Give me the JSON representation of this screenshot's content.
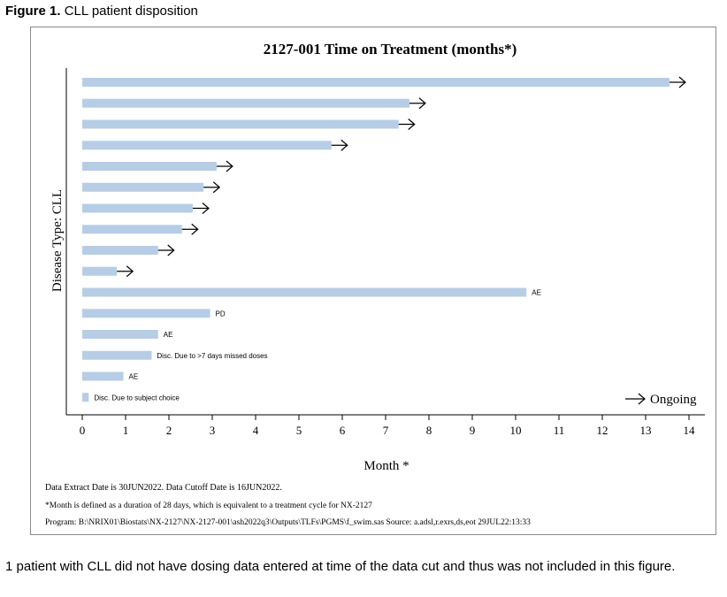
{
  "figure_label": "Figure 1.",
  "figure_title": "CLL patient disposition",
  "footnote": "1 patient with CLL did not have dosing data entered at time of the data cut and thus was not included in this figure.",
  "colors": {
    "bar": "#b7cde6",
    "frame": "#8a8a8a",
    "axis": "#000000"
  },
  "chart_data": {
    "type": "bar",
    "orientation": "horizontal",
    "title": "2127-001 Time on Treatment (months*)",
    "xlabel": "Month *",
    "ylabel": "Disease Type: CLL",
    "xlim": [
      0,
      14
    ],
    "xticks": [
      "0",
      "1",
      "2",
      "3",
      "4",
      "5",
      "6",
      "7",
      "8",
      "9",
      "10",
      "11",
      "12",
      "13",
      "14"
    ],
    "grid": false,
    "legend": {
      "label": "Ongoing",
      "symbol": "arrow",
      "placement": "bottom-right"
    },
    "bars": [
      {
        "value": 13.55,
        "ongoing": true,
        "label": ""
      },
      {
        "value": 7.55,
        "ongoing": true,
        "label": ""
      },
      {
        "value": 7.3,
        "ongoing": true,
        "label": ""
      },
      {
        "value": 5.75,
        "ongoing": true,
        "label": ""
      },
      {
        "value": 3.1,
        "ongoing": true,
        "label": ""
      },
      {
        "value": 2.8,
        "ongoing": true,
        "label": ""
      },
      {
        "value": 2.55,
        "ongoing": true,
        "label": ""
      },
      {
        "value": 2.3,
        "ongoing": true,
        "label": ""
      },
      {
        "value": 1.75,
        "ongoing": true,
        "label": ""
      },
      {
        "value": 0.8,
        "ongoing": true,
        "label": ""
      },
      {
        "value": 10.25,
        "ongoing": false,
        "label": "AE"
      },
      {
        "value": 2.95,
        "ongoing": false,
        "label": "PD"
      },
      {
        "value": 1.75,
        "ongoing": false,
        "label": "AE"
      },
      {
        "value": 1.6,
        "ongoing": false,
        "label": "Disc. Due to >7 days missed doses"
      },
      {
        "value": 0.95,
        "ongoing": false,
        "label": "AE"
      },
      {
        "value": 0.15,
        "ongoing": false,
        "label": "Disc. Due to subject choice"
      }
    ],
    "notes": [
      "Data Extract Date is 30JUN2022. Data Cutoff Date is 16JUN2022.",
      "*Month is defined as a duration of 28 days, which is equivalent to a treatment cycle for NX-2127",
      "Program: B:\\NRIX01\\Biostats\\NX-2127\\NX-2127-001\\ash2022q3\\Outputs\\TLFs\\PGMS\\f_swim.sas     Source: a.adsl,r.exrs,ds,eot     29JUL22:13:33"
    ]
  }
}
